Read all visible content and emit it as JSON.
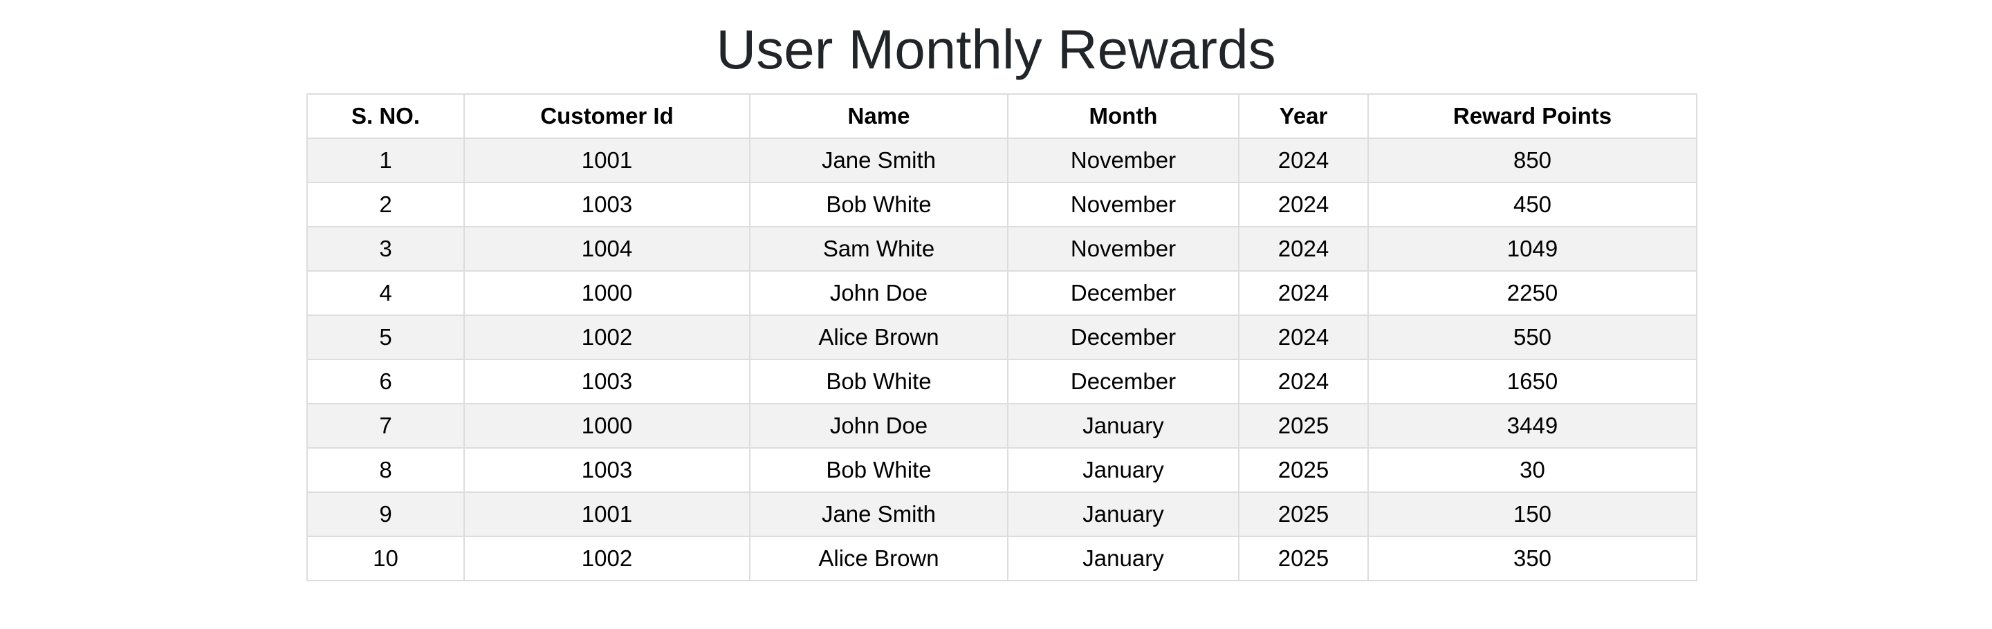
{
  "page": {
    "title": "User Monthly Rewards"
  },
  "table": {
    "headers": [
      "S. NO.",
      "Customer Id",
      "Name",
      "Month",
      "Year",
      "Reward Points"
    ],
    "rows": [
      [
        "1",
        "1001",
        "Jane Smith",
        "November",
        "2024",
        "850"
      ],
      [
        "2",
        "1003",
        "Bob White",
        "November",
        "2024",
        "450"
      ],
      [
        "3",
        "1004",
        "Sam White",
        "November",
        "2024",
        "1049"
      ],
      [
        "4",
        "1000",
        "John Doe",
        "December",
        "2024",
        "2250"
      ],
      [
        "5",
        "1002",
        "Alice Brown",
        "December",
        "2024",
        "550"
      ],
      [
        "6",
        "1003",
        "Bob White",
        "December",
        "2024",
        "1650"
      ],
      [
        "7",
        "1000",
        "John Doe",
        "January",
        "2025",
        "3449"
      ],
      [
        "8",
        "1003",
        "Bob White",
        "January",
        "2025",
        "30"
      ],
      [
        "9",
        "1001",
        "Jane Smith",
        "January",
        "2025",
        "150"
      ],
      [
        "10",
        "1002",
        "Alice Brown",
        "January",
        "2025",
        "350"
      ]
    ]
  },
  "colors": {
    "title_text": "#212529",
    "cell_border": "#dddddd",
    "stripe_row": "#f2f2f2",
    "plain_row": "#ffffff"
  }
}
